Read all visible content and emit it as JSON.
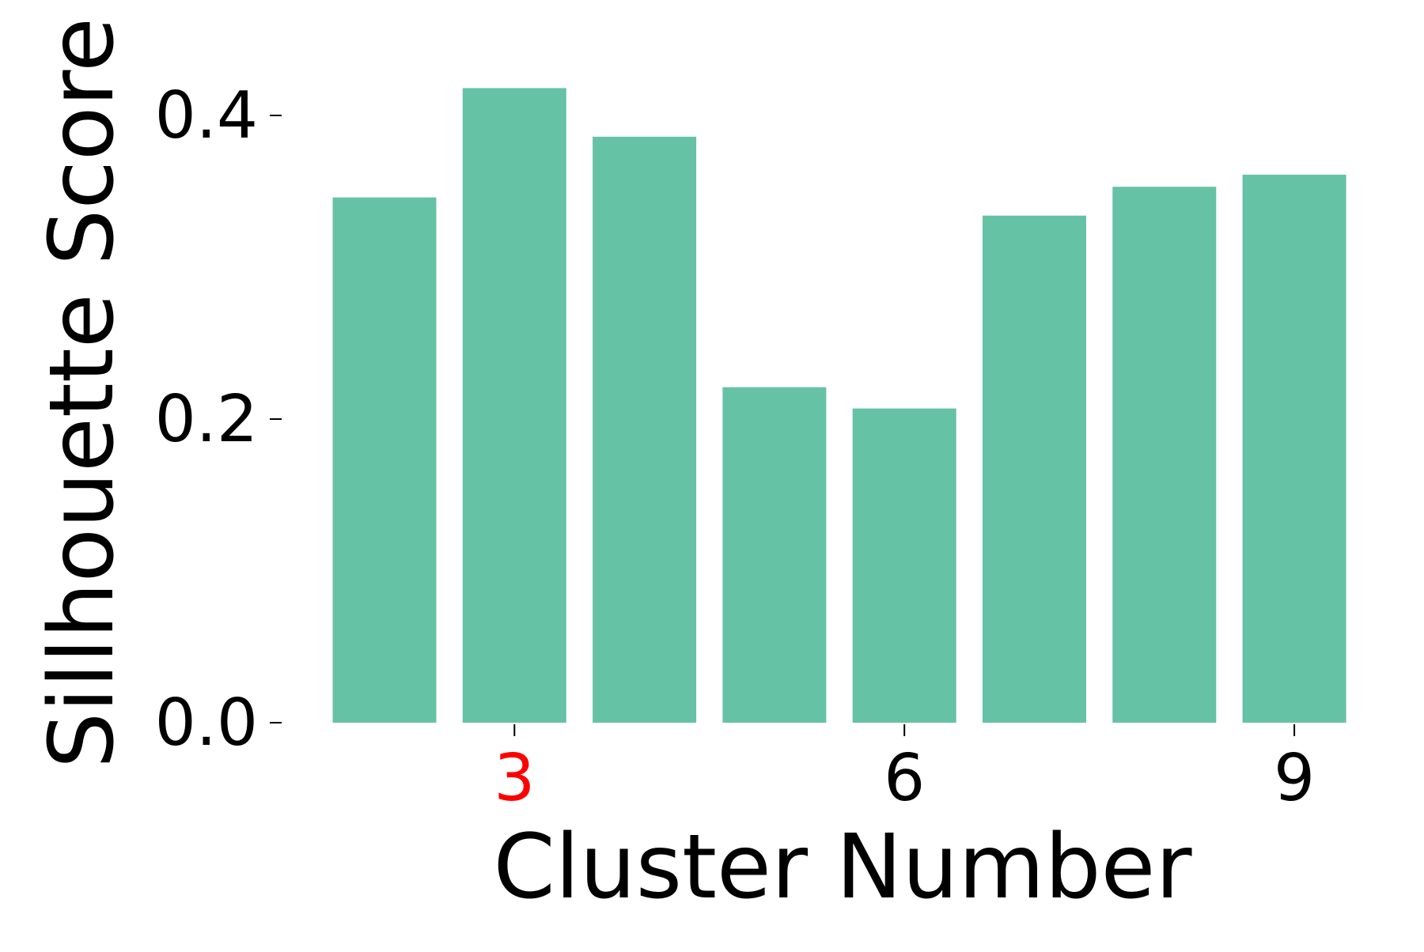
{
  "chart_data": {
    "type": "bar",
    "x": [
      2,
      3,
      4,
      5,
      6,
      7,
      8,
      9
    ],
    "values": [
      0.346,
      0.418,
      0.386,
      0.221,
      0.207,
      0.334,
      0.353,
      0.361
    ],
    "xlabel": "Cluster Number",
    "ylabel": "Sillhouette Score",
    "ylim": [
      0.0,
      0.42
    ],
    "yticks": [
      0.0,
      0.2,
      0.4
    ],
    "ytick_labels": [
      "0.0",
      "0.2",
      "0.4"
    ],
    "xticks": [
      3,
      6,
      9
    ],
    "xtick_labels": [
      "3",
      "6",
      "9"
    ],
    "highlighted_tick": 3,
    "grid": false,
    "colors": {
      "bar": "#66c2a5",
      "highlight_tick_label": "#ff0000",
      "text": "#000000"
    }
  }
}
